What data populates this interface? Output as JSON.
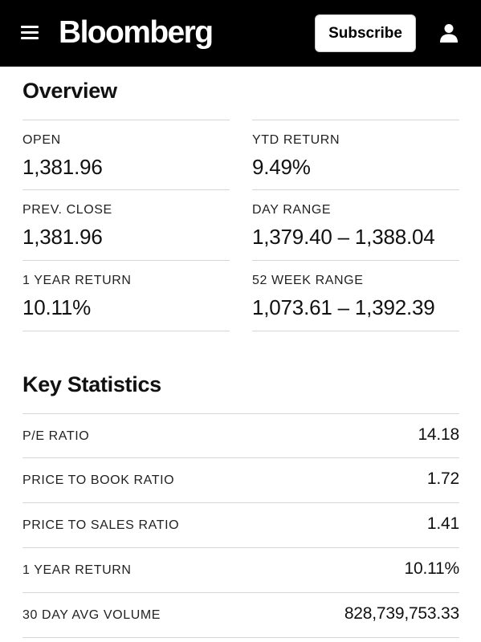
{
  "header": {
    "logo": "Bloomberg",
    "subscribe_label": "Subscribe",
    "menu_icon": "hamburger-menu-icon",
    "user_icon": "user-icon"
  },
  "overview": {
    "title": "Overview",
    "cells": [
      {
        "label": "OPEN",
        "value": "1,381.96"
      },
      {
        "label": "YTD RETURN",
        "value": "9.49%"
      },
      {
        "label": "PREV. CLOSE",
        "value": "1,381.96"
      },
      {
        "label": "DAY RANGE",
        "value": "1,379.40 – 1,388.04"
      },
      {
        "label": "1 YEAR RETURN",
        "value": "10.11%"
      },
      {
        "label": "52 WEEK RANGE",
        "value": "1,073.61 – 1,392.39"
      }
    ]
  },
  "key_statistics": {
    "title": "Key Statistics",
    "rows": [
      {
        "label": "P/E RATIO",
        "value": "14.18"
      },
      {
        "label": "PRICE TO BOOK RATIO",
        "value": "1.72"
      },
      {
        "label": "PRICE TO SALES RATIO",
        "value": "1.41"
      },
      {
        "label": "1 YEAR RETURN",
        "value": "10.11%"
      },
      {
        "label": "30 DAY AVG VOLUME",
        "value": "828,739,753.33"
      }
    ]
  },
  "colors": {
    "header_bg": "#000000",
    "divider": "#d6d6d6",
    "text": "#111111"
  }
}
